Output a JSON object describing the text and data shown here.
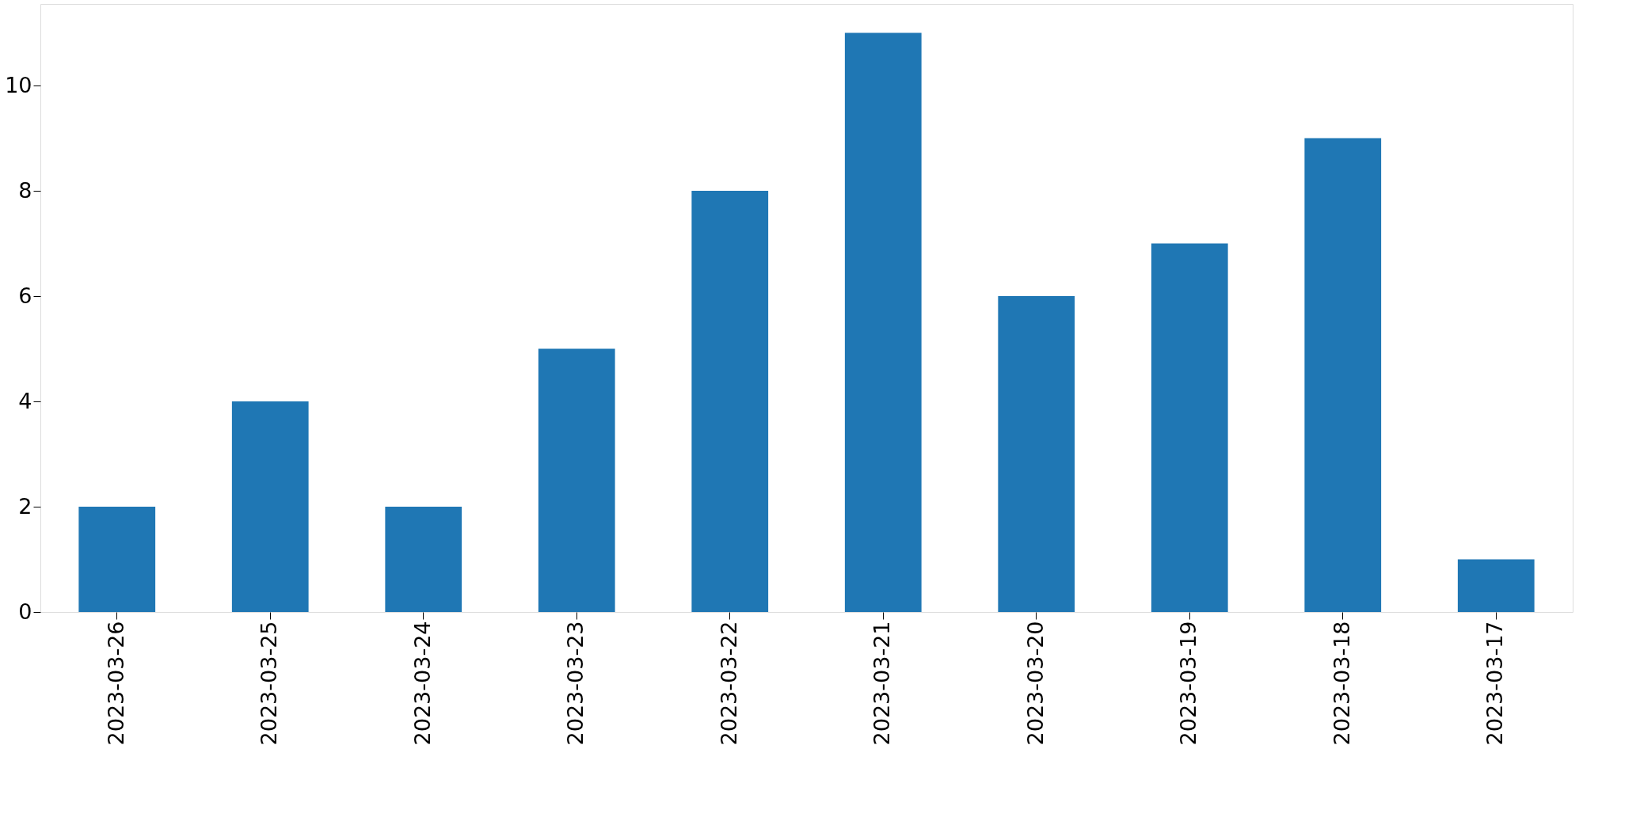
{
  "chart_data": {
    "type": "bar",
    "categories": [
      "2023-03-26",
      "2023-03-25",
      "2023-03-24",
      "2023-03-23",
      "2023-03-22",
      "2023-03-21",
      "2023-03-20",
      "2023-03-19",
      "2023-03-18",
      "2023-03-17"
    ],
    "values": [
      2,
      4,
      2,
      5,
      8,
      11,
      6,
      7,
      9,
      1
    ],
    "color": "#1f77b4",
    "ylim": [
      0,
      11.55
    ],
    "yticks": [
      0,
      2,
      4,
      6,
      8,
      10
    ]
  }
}
